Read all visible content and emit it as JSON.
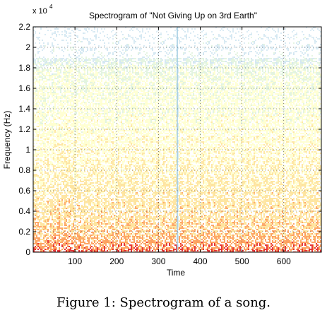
{
  "chart_data": {
    "type": "heatmap",
    "title": "Spectrogram of \"Not Giving Up on 3rd Earth\"",
    "xlabel": "Time",
    "ylabel": "Frequency (Hz)",
    "y_multiplier_label": "x 10",
    "y_multiplier_exponent": "4",
    "xlim": [
      0,
      690
    ],
    "ylim": [
      0,
      2.2
    ],
    "x_ticks": [
      100,
      200,
      300,
      400,
      500,
      600
    ],
    "x_tick_labels": [
      "100",
      "200",
      "300",
      "400",
      "500",
      "600"
    ],
    "y_ticks": [
      0,
      0.2,
      0.4,
      0.6,
      0.8,
      1,
      1.2,
      1.4,
      1.6,
      1.8,
      2,
      2.2
    ],
    "y_tick_labels": [
      "0",
      "0.2",
      "0.4",
      "0.6",
      "0.8",
      "1",
      "1.2",
      "1.4",
      "1.6",
      "1.8",
      "2",
      "2.2"
    ],
    "grid": true,
    "grid_style": "dotted",
    "colors": {
      "high_energy": "#e31a1c",
      "mid_high": "#fd8d3c",
      "mid": "#fed976",
      "low": "#ffffb2",
      "faint": "#c7e9c0",
      "cold": "#9ecae1",
      "background": "#ffffff"
    },
    "silence_markers_x": [
      345
    ],
    "energy_profile": {
      "note": "",
      "bands_y": [
        0,
        0.05,
        0.2,
        0.6,
        1.0,
        1.4,
        1.8,
        1.9,
        2.2
      ],
      "levels": [
        1.0,
        0.85,
        0.7,
        0.55,
        0.45,
        0.38,
        0.3,
        0.15,
        0.05
      ]
    }
  },
  "caption": "Figure 1: Spectrogram of a song."
}
